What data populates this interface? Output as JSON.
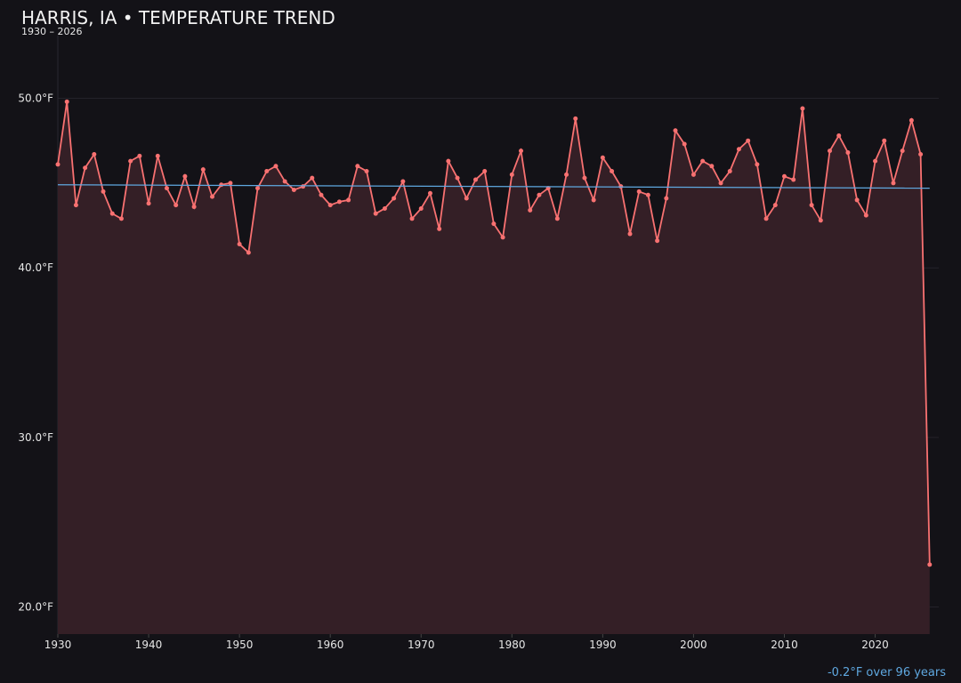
{
  "chart_data": {
    "type": "line",
    "title": "HARRIS, IA • TEMPERATURE TREND",
    "subtitle": "1930 – 2026",
    "annotation": "-0.2°F over 96 years",
    "x": [
      1930,
      1931,
      1932,
      1933,
      1934,
      1935,
      1936,
      1937,
      1938,
      1939,
      1940,
      1941,
      1942,
      1943,
      1944,
      1945,
      1946,
      1947,
      1948,
      1949,
      1950,
      1951,
      1952,
      1953,
      1954,
      1955,
      1956,
      1957,
      1958,
      1959,
      1960,
      1961,
      1962,
      1963,
      1964,
      1965,
      1966,
      1967,
      1968,
      1969,
      1970,
      1971,
      1972,
      1973,
      1974,
      1975,
      1976,
      1977,
      1978,
      1979,
      1980,
      1981,
      1982,
      1983,
      1984,
      1985,
      1986,
      1987,
      1988,
      1989,
      1990,
      1991,
      1992,
      1993,
      1994,
      1995,
      1996,
      1997,
      1998,
      1999,
      2000,
      2001,
      2002,
      2003,
      2004,
      2005,
      2006,
      2007,
      2008,
      2009,
      2010,
      2011,
      2012,
      2013,
      2014,
      2015,
      2016,
      2017,
      2018,
      2019,
      2020,
      2021,
      2022,
      2023,
      2024,
      2025,
      2026
    ],
    "series": [
      {
        "color": "#f87171",
        "fill": "#341f26",
        "values": [
          46.1,
          49.8,
          43.7,
          45.9,
          46.7,
          44.5,
          43.2,
          42.9,
          46.3,
          46.6,
          43.8,
          46.6,
          44.7,
          43.7,
          45.4,
          43.6,
          45.8,
          44.2,
          44.9,
          45.0,
          41.4,
          40.9,
          44.7,
          45.7,
          46.0,
          45.1,
          44.6,
          44.8,
          45.3,
          44.3,
          43.7,
          43.9,
          44.0,
          46.0,
          45.7,
          43.2,
          43.5,
          44.1,
          45.1,
          42.9,
          43.5,
          44.4,
          42.3,
          46.3,
          45.3,
          44.1,
          45.2,
          45.7,
          42.6,
          41.8,
          45.5,
          46.9,
          43.4,
          44.3,
          44.7,
          42.9,
          45.5,
          48.8,
          45.3,
          44.0,
          46.5,
          45.7,
          44.8,
          42.0,
          44.5,
          44.3,
          41.6,
          44.1,
          48.1,
          47.3,
          45.5,
          46.3,
          46.0,
          45.0,
          45.7,
          47.0,
          47.5,
          46.1,
          42.9,
          43.7,
          45.4,
          45.2,
          49.4,
          43.7,
          42.8,
          46.9,
          47.8,
          46.8,
          44.0,
          43.1,
          46.3,
          47.5,
          45.0,
          46.9,
          48.7,
          46.7,
          22.5
        ]
      }
    ],
    "trend": {
      "color": "#5fa8e0",
      "values": [
        44.9,
        44.7
      ]
    },
    "xlim": [
      1930,
      2027
    ],
    "ylim": [
      18.4,
      53.7
    ],
    "xticks": [
      1930,
      1940,
      1950,
      1960,
      1970,
      1980,
      1990,
      2000,
      2010,
      2020
    ],
    "yticks": [
      {
        "value": 20,
        "label": "20.0°F"
      },
      {
        "value": 30,
        "label": "30.0°F"
      },
      {
        "value": 40,
        "label": "40.0°F"
      },
      {
        "value": 50,
        "label": "50.0°F"
      }
    ],
    "grid": true
  }
}
